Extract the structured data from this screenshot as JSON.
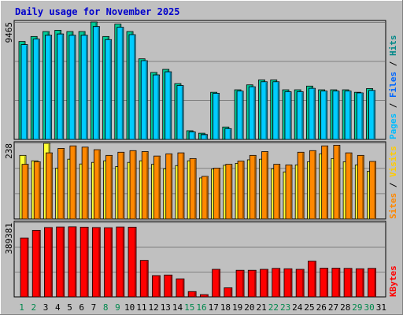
{
  "chart_data": {
    "type": "bar",
    "title": "Daily usage for November 2025",
    "categories": [
      "1",
      "2",
      "3",
      "4",
      "5",
      "6",
      "7",
      "8",
      "9",
      "10",
      "11",
      "12",
      "13",
      "14",
      "15",
      "16",
      "17",
      "18",
      "19",
      "20",
      "21",
      "22",
      "23",
      "24",
      "25",
      "26",
      "27",
      "28",
      "29",
      "30",
      "31"
    ],
    "weekend_days": [
      "1",
      "2",
      "8",
      "9",
      "15",
      "16",
      "22",
      "23",
      "29",
      "30"
    ],
    "panels": [
      {
        "id": "top",
        "ymax_label": "9465",
        "ylim": [
          0,
          9465
        ],
        "legend": [
          {
            "text": "Pages",
            "color": "#00bbff"
          },
          {
            "text": " / ",
            "color": "#000000"
          },
          {
            "text": "Files",
            "color": "#0066ff"
          },
          {
            "text": " / ",
            "color": "#000000"
          },
          {
            "text": "Hits",
            "color": "#008888"
          }
        ],
        "series": [
          {
            "name": "Hits",
            "color": "#00cc99",
            "values": [
              7900,
              8300,
              8700,
              8800,
              8700,
              8700,
              9465,
              8300,
              9300,
              8700,
              6500,
              5400,
              5650,
              4500,
              700,
              500,
              3800,
              1000,
              4000,
              4400,
              4800,
              4800,
              4000,
              4000,
              4300,
              4000,
              4000,
              4000,
              3800,
              4100,
              0
            ]
          },
          {
            "name": "Files",
            "color": "#0066ff",
            "values": [
              7600,
              8000,
              8400,
              8500,
              8400,
              8400,
              9100,
              8000,
              9000,
              8400,
              6300,
              5200,
              5450,
              4300,
              600,
              400,
              3700,
              850,
              3850,
              4200,
              4000,
              4000,
              3800,
              3800,
              4100,
              3850,
              3850,
              3850,
              3700,
              3900,
              0
            ]
          },
          {
            "name": "Pages",
            "color": "#00ccff",
            "values": [
              7650,
              8100,
              8400,
              8500,
              8400,
              8400,
              9100,
              8050,
              9050,
              8450,
              6350,
              5200,
              5450,
              4350,
              600,
              380,
              3720,
              870,
              3900,
              4250,
              4650,
              4650,
              3850,
              3850,
              4120,
              3900,
              3900,
              3900,
              3750,
              3950,
              0
            ]
          }
        ]
      },
      {
        "id": "mid",
        "ymax_label": "238",
        "ylim": [
          0,
          238
        ],
        "legend": [
          {
            "text": "Sites",
            "color": "#ff8800"
          },
          {
            "text": " / ",
            "color": "#000000"
          },
          {
            "text": "Visits",
            "color": "#ffcc00"
          }
        ],
        "series": [
          {
            "name": "Visits",
            "color": "#ffff33",
            "values": [
              200,
              183,
              238,
              160,
              188,
              173,
              178,
              183,
              165,
              178,
              183,
              172,
              158,
              168,
              183,
              129,
              157,
              169,
              175,
              186,
              188,
              158,
              148,
              170,
              180,
              205,
              190,
              180,
              170,
              150,
              0
            ]
          },
          {
            "name": "Sites",
            "color": "#ff8800",
            "values": [
              172,
              180,
              208,
              222,
              230,
              226,
              218,
              200,
              210,
              215,
              212,
              198,
              205,
              208,
              190,
              134,
              160,
              172,
              182,
              200,
              212,
              172,
              170,
              210,
              215,
              230,
              232,
              208,
              200,
              181,
              0
            ]
          }
        ]
      },
      {
        "id": "bot",
        "ymax_label": "389381",
        "ylim": [
          0,
          389381
        ],
        "legend": [
          {
            "text": "KBytes",
            "color": "#ff0000"
          }
        ],
        "series": [
          {
            "name": "KBytes",
            "color": "#ff0000",
            "values": [
              310000,
              350000,
              365000,
              368000,
              369000,
              367000,
              365000,
              364000,
              368000,
              367000,
              192000,
              112000,
              115000,
              95000,
              28000,
              12000,
              145000,
              48000,
              140000,
              140000,
              145000,
              150000,
              148000,
              145000,
              188000,
              151000,
              151000,
              150000,
              148000,
              150000,
              0
            ]
          }
        ]
      }
    ]
  }
}
